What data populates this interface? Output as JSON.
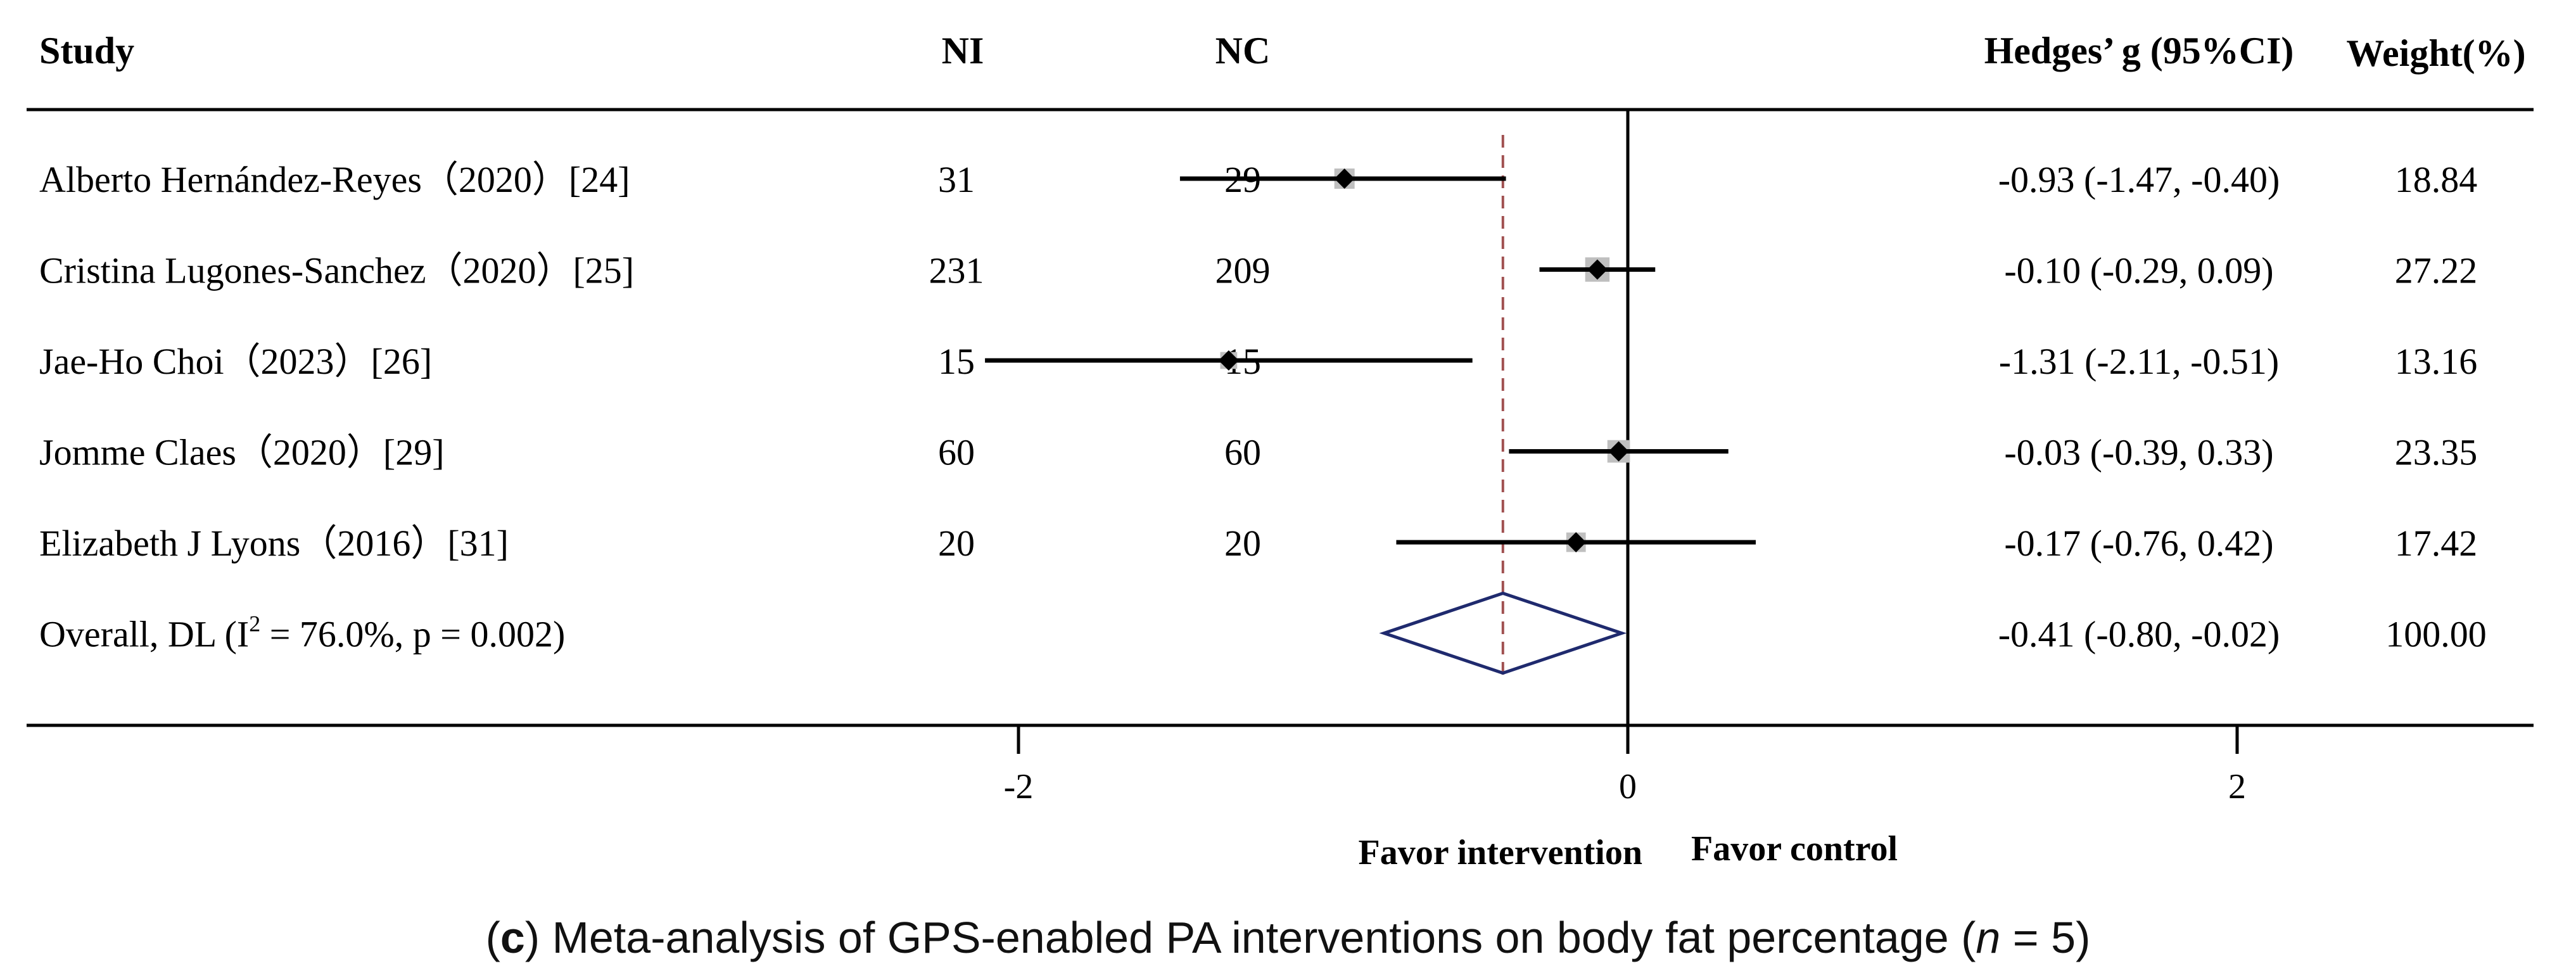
{
  "chart_data": {
    "type": "forest",
    "columns": {
      "study": "Study",
      "ni": "NI",
      "nc": "NC",
      "effect": "Hedges’ g (95%CI)",
      "weight": "Weight(%)"
    },
    "studies": [
      {
        "label": "Alberto Hernández-Reyes（2020）[24]",
        "ni": "31",
        "nc": "29",
        "g": -0.93,
        "lo": -1.47,
        "hi": -0.4,
        "ci_text": "-0.93 (-1.47, -0.40)",
        "weight": 18.84,
        "weight_text": "18.84"
      },
      {
        "label": "Cristina Lugones-Sanchez（2020）[25]",
        "ni": "231",
        "nc": "209",
        "g": -0.1,
        "lo": -0.29,
        "hi": 0.09,
        "ci_text": "-0.10 (-0.29, 0.09)",
        "weight": 27.22,
        "weight_text": "27.22"
      },
      {
        "label": "Jae-Ho Choi（2023）[26]",
        "ni": "15",
        "nc": "15",
        "g": -1.31,
        "lo": -2.11,
        "hi": -0.51,
        "ci_text": "-1.31 (-2.11, -0.51)",
        "weight": 13.16,
        "weight_text": "13.16"
      },
      {
        "label": "Jomme Claes（2020）[29]",
        "ni": "60",
        "nc": "60",
        "g": -0.03,
        "lo": -0.39,
        "hi": 0.33,
        "ci_text": "-0.03 (-0.39, 0.33)",
        "weight": 23.35,
        "weight_text": "23.35"
      },
      {
        "label": "Elizabeth J Lyons（2016）[31]",
        "ni": "20",
        "nc": "20",
        "g": -0.17,
        "lo": -0.76,
        "hi": 0.42,
        "ci_text": "-0.17 (-0.76, 0.42)",
        "weight": 17.42,
        "weight_text": "17.42"
      }
    ],
    "overall": {
      "label_prefix": "Overall, DL (I",
      "label_sup": "2",
      "label_suffix": " = 76.0%, p = 0.002)",
      "g": -0.41,
      "lo": -0.8,
      "hi": -0.02,
      "ci_text": "-0.41 (-0.80, -0.02)",
      "weight_text": "100.00"
    },
    "xaxis": {
      "min": -2,
      "max": 2,
      "ticks": [
        -2,
        0,
        2
      ],
      "tick_labels": [
        "-2",
        "0",
        "2"
      ]
    },
    "favor_left": "Favor intervention",
    "favor_right": "Favor control",
    "colors": {
      "ink": "#000000",
      "box": "#bfbfbf",
      "overall_line": "#a05050",
      "diamond": "#1f2a6e"
    }
  },
  "caption": {
    "letter": "c",
    "text_before": ") Meta-analysis of GPS-enabled PA interventions on body fat percentage (",
    "n_var": "n",
    "text_after": " = 5)"
  }
}
